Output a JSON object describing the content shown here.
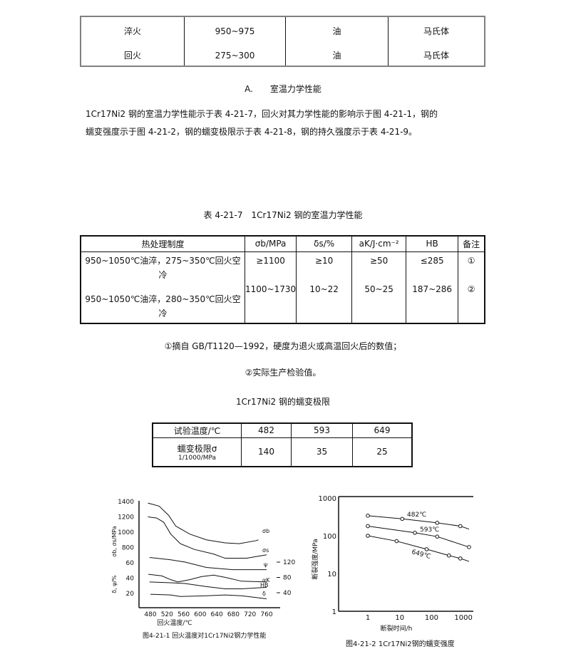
{
  "table_top": {
    "rows": [
      [
        "淬火",
        "950~975",
        "油",
        "马氏体"
      ],
      [
        "回火",
        "275~300",
        "油",
        "马氏体"
      ]
    ]
  },
  "section_heading": "A.　　室温力学性能",
  "paragraph": [
    "1Cr17Ni2 钢的室温力学性能示于表 4-21-7，回火对其力学性能的影响示于图 4-21-1，钢的",
    "蠕变强度示于图 4-21-2，钢的蠕变极限示于表 4-21-8，钢的持久强度示于表 4-21-9。"
  ],
  "table_7": {
    "caption": "表 4-21-7　1Cr17Ni2 钢的室温力学性能",
    "headers": [
      "热处理制度",
      "σb/MPa",
      "δs/%",
      "aK/J·cm⁻²",
      "HB",
      "备注"
    ],
    "treatments": [
      "950~1050℃油淬，275~350℃回火空冷",
      "950~1050℃油淬，280~350℃回火空冷"
    ],
    "rows": [
      [
        "≥1100",
        "≥10",
        "≥50",
        "≤285",
        "①"
      ],
      [
        "1100~1730",
        "10~22",
        "50~25",
        "187~286",
        "②"
      ]
    ]
  },
  "notes": [
    "①摘自 GB/T1120—1992，硬度为退火或高温回火后的数值；",
    "②实际生产检验值。"
  ],
  "table_8": {
    "caption": "1Cr17Ni2 钢的蠕变极限",
    "header": "试验温度/℃",
    "temps": [
      "482",
      "593",
      "649"
    ],
    "row_label": "蠕变极限σ",
    "row_label_sub": "1/1000/MPa",
    "values": [
      "140",
      "35",
      "25"
    ]
  },
  "chart_data": [
    {
      "type": "line",
      "caption": "图4-21-1 回火温度对1Cr17Ni2钢力学性能",
      "xlabel": "回火温度/℃",
      "ylabel_upper": "σb, σs/MPa",
      "ylabel_lower": "δ, ψ/%",
      "xticks": [
        480,
        520,
        560,
        600,
        640,
        680,
        720,
        760
      ],
      "yticks_left": [
        "1400",
        "1200",
        "1000",
        "800",
        "60",
        "40",
        "20"
      ],
      "yticks_right": [
        "120",
        "80",
        "40"
      ],
      "series": [
        {
          "name": "σb",
          "axis": "MPa",
          "points": [
            [
              474,
              1380
            ],
            [
              501,
              1340
            ],
            [
              524,
              1220
            ],
            [
              541,
              1080
            ],
            [
              575,
              975
            ],
            [
              615,
              900
            ],
            [
              660,
              860
            ],
            [
              694,
              850
            ],
            [
              735,
              890
            ],
            [
              740,
              900
            ]
          ]
        },
        {
          "name": "σs",
          "axis": "MPa",
          "points": [
            [
              474,
              1200
            ],
            [
              495,
              1185
            ],
            [
              512,
              1130
            ],
            [
              529,
              975
            ],
            [
              552,
              850
            ],
            [
              586,
              775
            ],
            [
              632,
              715
            ],
            [
              660,
              660
            ],
            [
              712,
              660
            ],
            [
              760,
              705
            ]
          ]
        },
        {
          "name": "ψ",
          "axis": "percent",
          "points": [
            [
              478,
              67
            ],
            [
              529,
              64
            ],
            [
              563,
              61
            ],
            [
              615,
              54
            ],
            [
              678,
              51
            ],
            [
              760,
              51
            ]
          ]
        },
        {
          "name": "αK",
          "axis": "right",
          "points": [
            [
              475,
              90
            ],
            [
              507,
              86
            ],
            [
              529,
              76
            ],
            [
              546,
              70
            ],
            [
              575,
              76
            ],
            [
              603,
              84
            ],
            [
              632,
              88
            ],
            [
              660,
              82
            ],
            [
              700,
              72
            ],
            [
              760,
              70
            ]
          ]
        },
        {
          "name": "HB",
          "axis": "right",
          "points": [
            [
              478,
              70
            ],
            [
              529,
              68
            ],
            [
              563,
              66
            ],
            [
              615,
              58
            ],
            [
              660,
              52
            ],
            [
              700,
              52
            ],
            [
              760,
              56
            ]
          ]
        },
        {
          "name": "δ",
          "axis": "percent",
          "points": [
            [
              480,
              19
            ],
            [
              529,
              18
            ],
            [
              552,
              16
            ],
            [
              615,
              17
            ],
            [
              660,
              18
            ],
            [
              700,
              17
            ],
            [
              760,
              13
            ]
          ]
        }
      ]
    },
    {
      "type": "line",
      "caption": "图4-21-2 1Cr17Ni2钢的蠕变强度",
      "xlabel": "断裂时间/h",
      "ylabel": "断裂强度/MPa",
      "xscale": "log",
      "yscale": "log",
      "xticks": [
        "1",
        "10",
        "100",
        "1000"
      ],
      "yticks": [
        "1000",
        "100",
        "10",
        "1"
      ],
      "ylim": [
        1,
        1000
      ],
      "series": [
        {
          "name": "482℃",
          "points": [
            [
              1,
              340
            ],
            [
              12,
              280
            ],
            [
              150,
              220
            ],
            [
              800,
              180
            ]
          ],
          "end": [
            1500,
            150
          ]
        },
        {
          "name": "593℃",
          "points": [
            [
              1,
              180
            ],
            [
              30,
              120
            ],
            [
              150,
              95
            ],
            [
              1500,
              50
            ]
          ],
          "end": [
            1500,
            50
          ]
        },
        {
          "name": "649℃",
          "points": [
            [
              1,
              100
            ],
            [
              8,
              72
            ],
            [
              70,
              44
            ],
            [
              350,
              30
            ],
            [
              800,
              25
            ]
          ],
          "end": [
            1500,
            21
          ]
        }
      ]
    }
  ]
}
